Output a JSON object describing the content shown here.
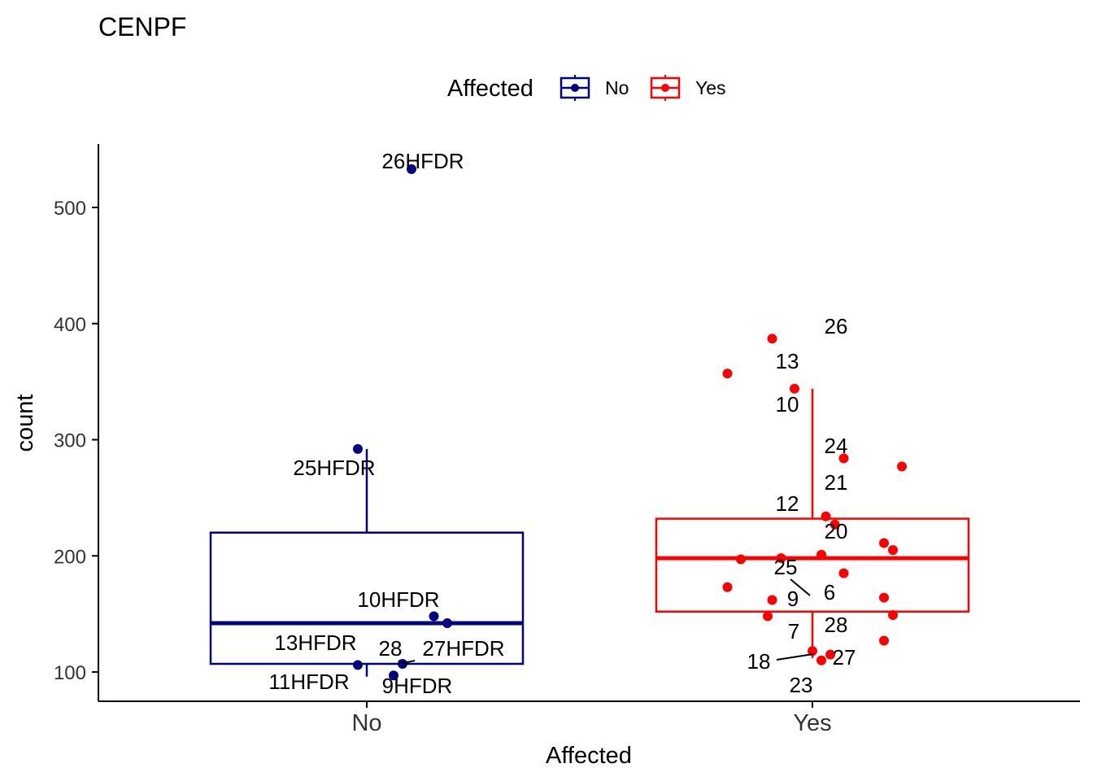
{
  "chart_data": {
    "type": "boxplot",
    "title": "CENPF",
    "xlabel": "Affected",
    "ylabel": "count",
    "ylim": [
      75,
      555
    ],
    "yticks": [
      100,
      200,
      300,
      400,
      500
    ],
    "grid": false,
    "legend": {
      "title": "Affected",
      "position": "top",
      "entries": [
        {
          "label": "No",
          "color": "#000080"
        },
        {
          "label": "Yes",
          "color": "#ff0000"
        }
      ]
    },
    "categories": [
      "No",
      "Yes"
    ],
    "groups": [
      {
        "name": "No",
        "color": "#000080",
        "box": {
          "lower_whisker": 96,
          "q1": 107,
          "median": 142,
          "q3": 220,
          "upper_whisker": 292
        },
        "points": [
          {
            "jitter": -0.02,
            "y": 292,
            "label": "25HFDR"
          },
          {
            "jitter": 0.1,
            "y": 533,
            "label": "26HFDR"
          },
          {
            "jitter": 0.15,
            "y": 148,
            "label": "10HFDR"
          },
          {
            "jitter": 0.18,
            "y": 142,
            "label": "27HFDR"
          },
          {
            "jitter": -0.02,
            "y": 106,
            "label": "11HFDR"
          },
          {
            "jitter": 0.06,
            "y": 97,
            "label": "9HFDR"
          },
          {
            "jitter": 0.08,
            "y": 107,
            "label": "28"
          },
          {
            "label": "13HFDR"
          }
        ]
      },
      {
        "name": "Yes",
        "color": "#ff0000",
        "box": {
          "lower_whisker": 112,
          "q1": 152,
          "median": 198,
          "q3": 232,
          "upper_whisker": 344
        },
        "points": [
          {
            "jitter": -0.09,
            "y": 387,
            "label": "26"
          },
          {
            "jitter": -0.19,
            "y": 357,
            "label": "13"
          },
          {
            "jitter": -0.04,
            "y": 344,
            "label": "10"
          },
          {
            "jitter": 0.07,
            "y": 284,
            "label": "24"
          },
          {
            "jitter": 0.2,
            "y": 277,
            "label": "21"
          },
          {
            "jitter": 0.03,
            "y": 234,
            "label": "12"
          },
          {
            "jitter": 0.05,
            "y": 227,
            "label": "20"
          },
          {
            "jitter": 0.16,
            "y": 211
          },
          {
            "jitter": 0.18,
            "y": 205
          },
          {
            "jitter": -0.16,
            "y": 197
          },
          {
            "jitter": -0.07,
            "y": 198,
            "label": "25"
          },
          {
            "jitter": 0.02,
            "y": 201
          },
          {
            "jitter": 0.07,
            "y": 185,
            "label": "6"
          },
          {
            "jitter": -0.19,
            "y": 173
          },
          {
            "jitter": -0.09,
            "y": 162,
            "label": "9"
          },
          {
            "jitter": 0.16,
            "y": 164
          },
          {
            "jitter": -0.1,
            "y": 148,
            "label": "7"
          },
          {
            "jitter": 0.18,
            "y": 149
          },
          {
            "jitter": 0.16,
            "y": 127,
            "label": "28"
          },
          {
            "jitter": 0.0,
            "y": 118,
            "label": "18"
          },
          {
            "jitter": 0.04,
            "y": 115,
            "label": "27"
          },
          {
            "jitter": 0.02,
            "y": 110,
            "label": "23"
          }
        ]
      }
    ]
  }
}
